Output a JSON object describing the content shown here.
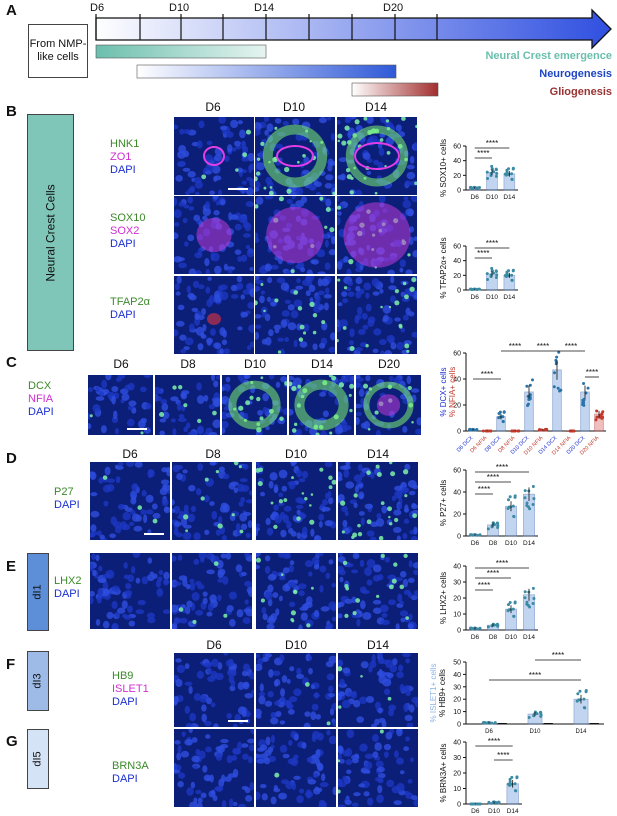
{
  "colors": {
    "green": "#3b8a2a",
    "magenta": "#d12fd1",
    "blue": "#1b2fd0",
    "teal": "#6bbfad",
    "neuroBlue": "#1d45c4",
    "glioRed": "#9b3232",
    "nfiaRed": "#c0392b",
    "lightBlue": "#8fb3e6"
  },
  "panels": {
    "A": "A",
    "B": "B",
    "C": "C",
    "D": "D",
    "E": "E",
    "F": "F",
    "G": "G"
  },
  "timeline": {
    "days": [
      "D6",
      "D10",
      "D14",
      "D20"
    ],
    "from_box": "From NMP-like cells",
    "labels": {
      "neural_crest": "Neural Crest emergence",
      "neurogenesis": "Neurogenesis",
      "gliogenesis": "Gliogenesis"
    }
  },
  "B": {
    "side_label": "Neural Crest Cells",
    "cols": [
      "D6",
      "D10",
      "D14"
    ],
    "rows": [
      {
        "stains": [
          {
            "t": "HNK1",
            "c": "green"
          },
          {
            "t": "ZO1",
            "c": "magenta"
          },
          {
            "t": "DAPI",
            "c": "blue"
          }
        ]
      },
      {
        "stains": [
          {
            "t": "SOX10",
            "c": "green"
          },
          {
            "t": "SOX2",
            "c": "magenta"
          },
          {
            "t": "DAPI",
            "c": "blue"
          }
        ]
      },
      {
        "stains": [
          {
            "t": "TFAP2α",
            "c": "green"
          },
          {
            "t": "DAPI",
            "c": "blue"
          }
        ]
      }
    ]
  },
  "C": {
    "cols": [
      "D6",
      "D8",
      "D10",
      "D14",
      "D20"
    ],
    "stains": [
      {
        "t": "DCX",
        "c": "green"
      },
      {
        "t": "NFIA",
        "c": "magenta"
      },
      {
        "t": "DAPI",
        "c": "blue"
      }
    ]
  },
  "D": {
    "cols": [
      "D6",
      "D8",
      "D10",
      "D14"
    ],
    "stains": [
      {
        "t": "P27",
        "c": "green"
      },
      {
        "t": "DAPI",
        "c": "blue"
      }
    ]
  },
  "E": {
    "side_label": "dI1",
    "stains": [
      {
        "t": "LHX2",
        "c": "green"
      },
      {
        "t": "DAPI",
        "c": "blue"
      }
    ]
  },
  "F": {
    "side_label": "dI3",
    "cols": [
      "D6",
      "D10",
      "D14"
    ],
    "stains": [
      {
        "t": "HB9",
        "c": "green"
      },
      {
        "t": "ISLET1",
        "c": "magenta"
      },
      {
        "t": "DAPI",
        "c": "blue"
      }
    ]
  },
  "G": {
    "side_label": "dI5",
    "stains": [
      {
        "t": "BRN3A",
        "c": "green"
      },
      {
        "t": "DAPI",
        "c": "blue"
      }
    ]
  },
  "significance": "****",
  "chart_data": [
    {
      "type": "bar",
      "name": "B-sox10",
      "ylabel": "% SOX10+ cells",
      "categories": [
        "D6",
        "D10",
        "D14"
      ],
      "values": [
        3,
        24,
        22
      ],
      "ylim": [
        0,
        60
      ],
      "yticks": [
        0,
        20,
        40,
        60
      ]
    },
    {
      "type": "bar",
      "name": "B-tfap2a",
      "ylabel": "% TFAP2α+ cells",
      "categories": [
        "D6",
        "D10",
        "D14"
      ],
      "values": [
        1,
        22,
        20
      ],
      "ylim": [
        0,
        60
      ],
      "yticks": [
        0,
        20,
        40,
        60
      ]
    },
    {
      "type": "bar",
      "name": "C-dcx-nfia",
      "ylabel_parts": [
        "% DCX+ cells",
        "% NFIA+ cells"
      ],
      "categories": [
        "D6 DCX",
        "D6 NFIA",
        "D8 DCX",
        "D8 NFIA",
        "D10 DCX",
        "D10 NFIA",
        "D14 DCX",
        "D14 NFIA",
        "D20 DCX",
        "D20 NFIA"
      ],
      "values": [
        1,
        0,
        11,
        0,
        30,
        1,
        47,
        0,
        30,
        13
      ],
      "ylim": [
        0,
        60
      ],
      "yticks": [
        0,
        20,
        40,
        60
      ]
    },
    {
      "type": "bar",
      "name": "D-p27",
      "ylabel": "% P27+ cells",
      "categories": [
        "D6",
        "D8",
        "D10",
        "D14"
      ],
      "values": [
        1,
        10,
        27,
        38
      ],
      "ylim": [
        0,
        60
      ],
      "yticks": [
        0,
        20,
        40,
        60
      ]
    },
    {
      "type": "bar",
      "name": "E-lhx2",
      "ylabel": "% LHX2+ cells",
      "categories": [
        "D6",
        "D8",
        "D10",
        "D14"
      ],
      "values": [
        1,
        3,
        13,
        22
      ],
      "ylim": [
        0,
        40
      ],
      "yticks": [
        0,
        10,
        20,
        30,
        40
      ]
    },
    {
      "type": "bar",
      "name": "F-hb9-islet1",
      "ylabel_parts": [
        "% ISLET1+ cells",
        "% HB9+ cells"
      ],
      "categories": [
        "D6",
        "D10",
        "D14"
      ],
      "series": [
        {
          "name": "HB9",
          "values": [
            1,
            8,
            20
          ]
        },
        {
          "name": "ISLET1",
          "values": [
            0,
            0,
            0
          ]
        }
      ],
      "ylim": [
        0,
        50
      ],
      "yticks": [
        0,
        10,
        20,
        30,
        40,
        50
      ]
    },
    {
      "type": "bar",
      "name": "G-brn3a",
      "ylabel": "% BRN3A+ cells",
      "categories": [
        "D6",
        "D10",
        "D14"
      ],
      "values": [
        0,
        1,
        13
      ],
      "ylim": [
        0,
        40
      ],
      "yticks": [
        0,
        10,
        20,
        30,
        40
      ]
    }
  ]
}
